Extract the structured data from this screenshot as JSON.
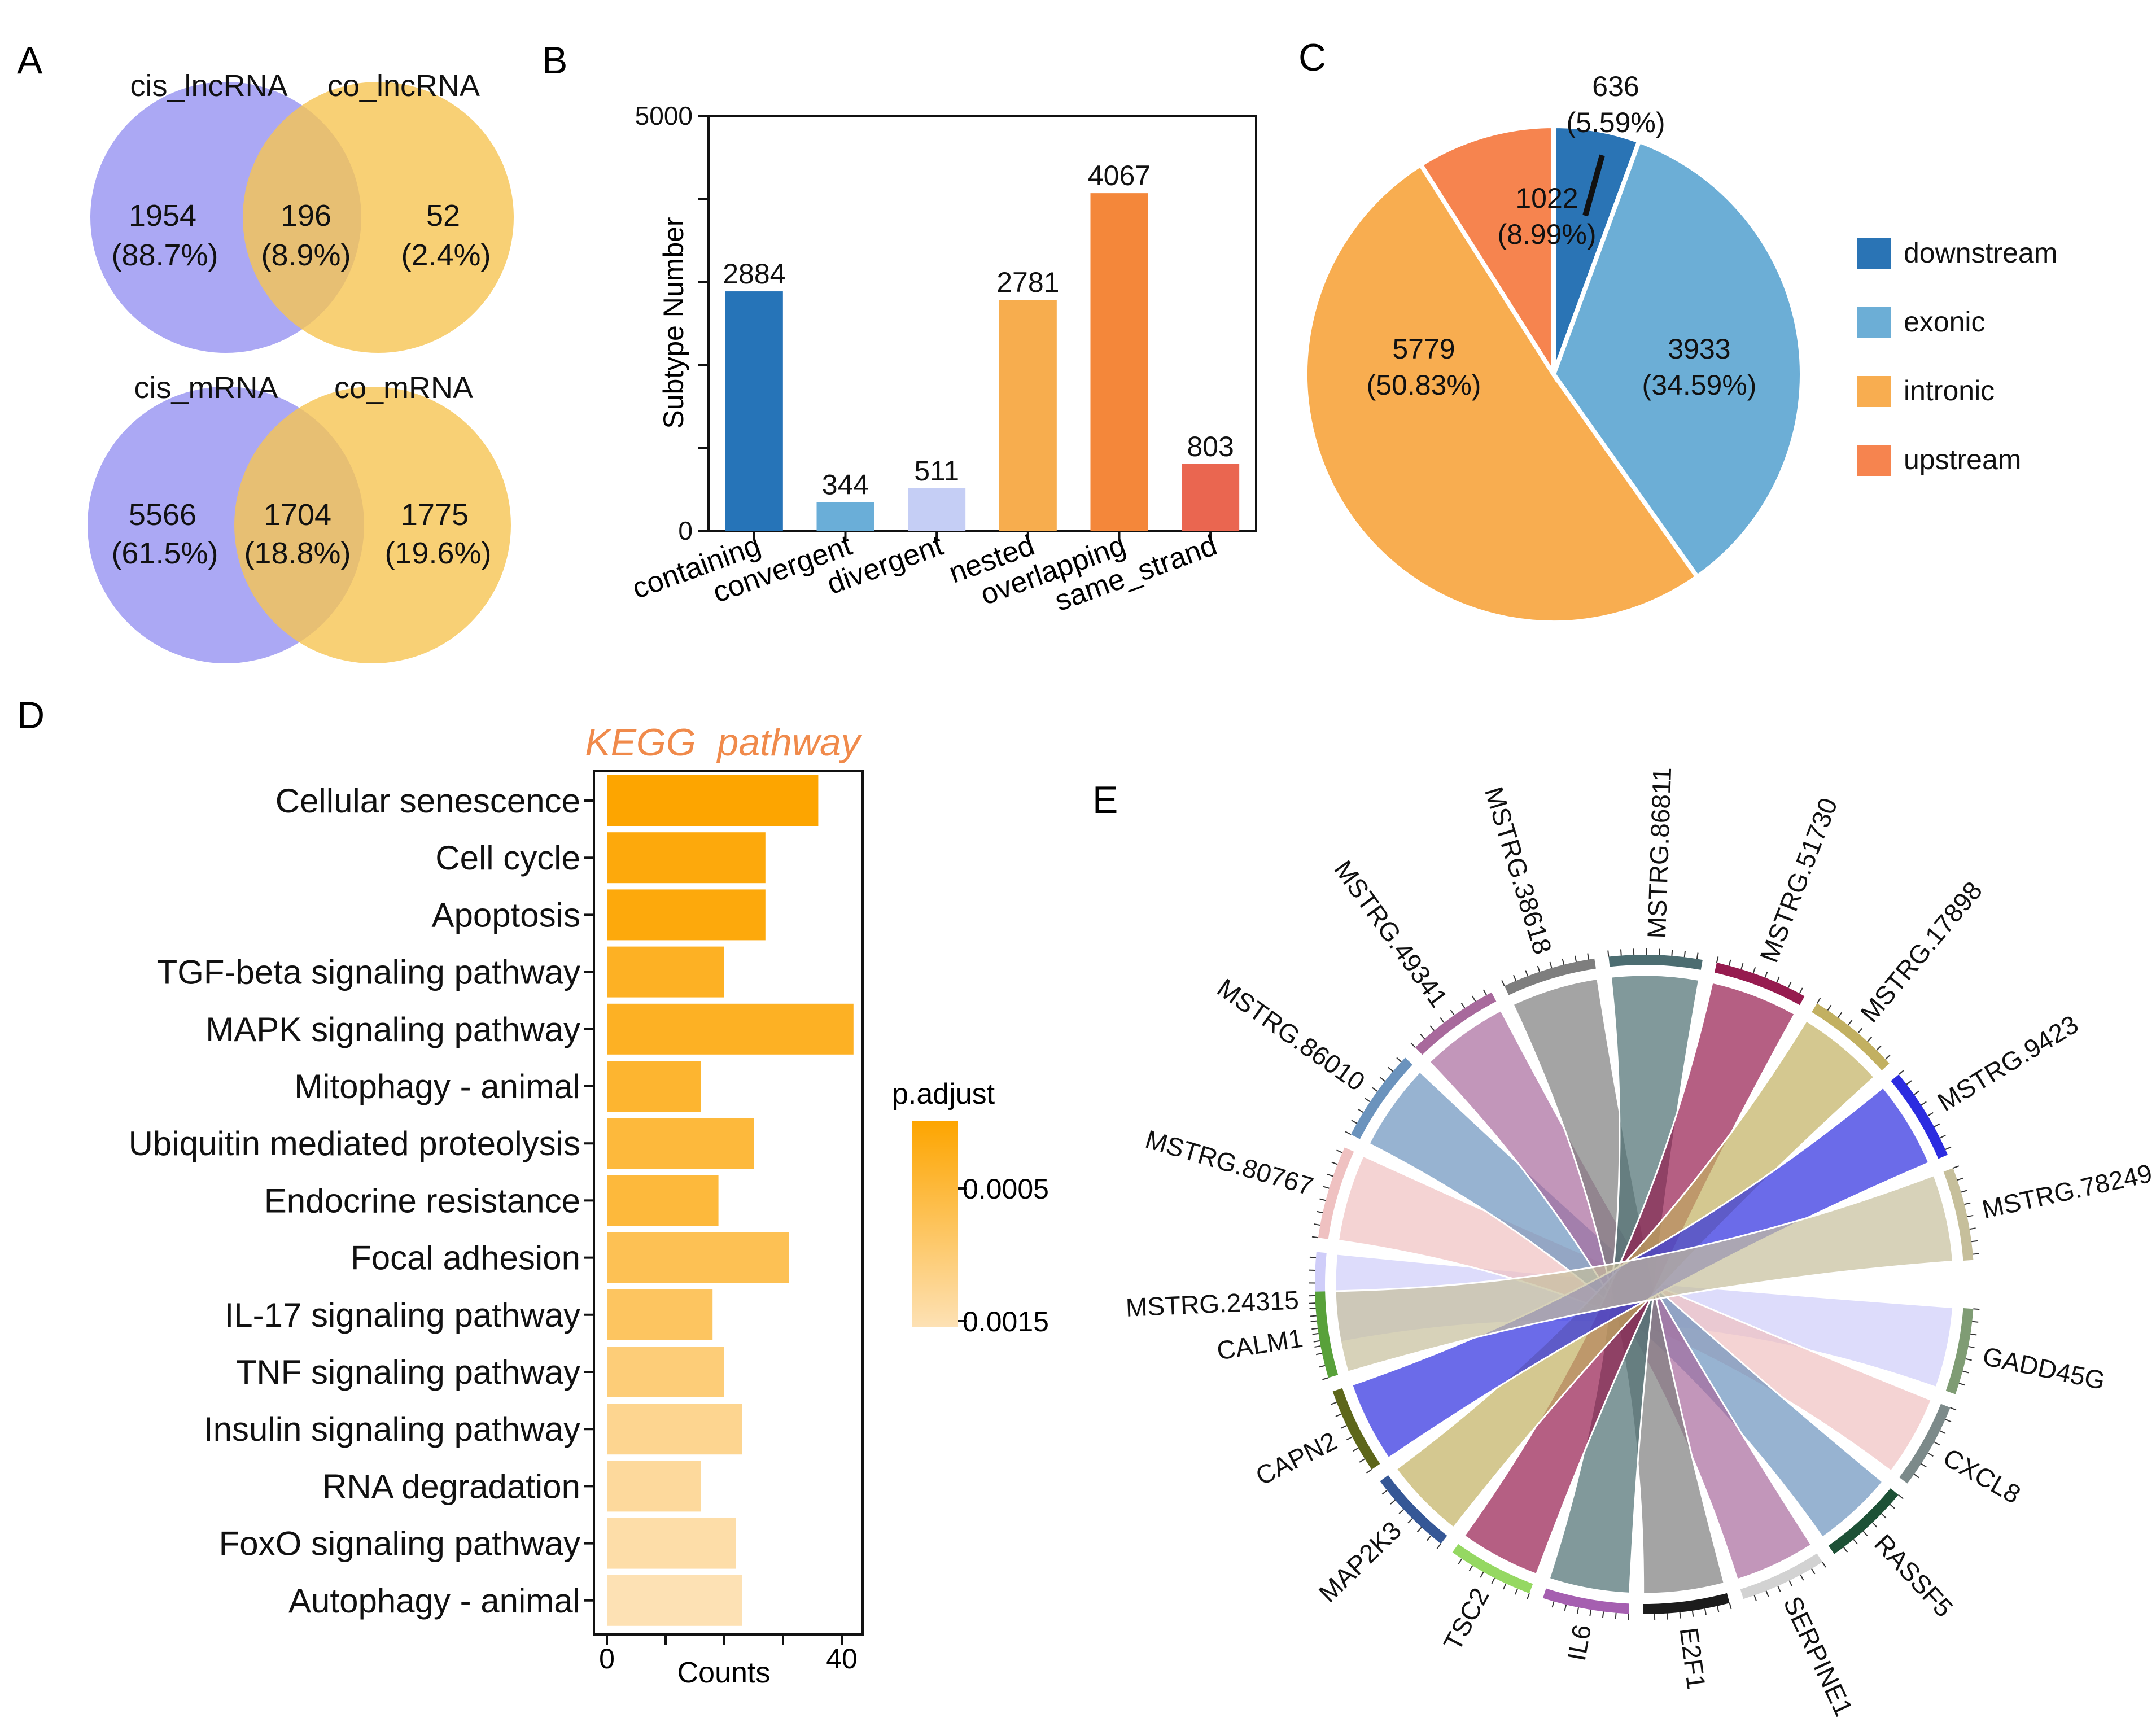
{
  "panels": {
    "A": {
      "letter": "A",
      "venns": [
        {
          "left_label": "cis_lncRNA",
          "right_label": "co_lncRNA",
          "left_value": "1954",
          "left_pct": "(88.7%)",
          "mid_value": "196",
          "mid_pct": "(8.9%)",
          "right_value": "52",
          "right_pct": "(2.4%)"
        },
        {
          "left_label": "cis_mRNA",
          "right_label": "co_mRNA",
          "left_value": "5566",
          "left_pct": "(61.5%)",
          "mid_value": "1704",
          "mid_pct": "(18.8%)",
          "right_value": "1775",
          "right_pct": "(19.6%)"
        }
      ],
      "colors": {
        "left": "#9f9cf2",
        "right": "#f6c452"
      }
    },
    "B": {
      "letter": "B"
    },
    "C": {
      "letter": "C"
    },
    "D": {
      "letter": "D"
    },
    "E": {
      "letter": "E"
    }
  },
  "chart_data": [
    {
      "id": "B",
      "type": "bar",
      "title": "",
      "xlabel": "",
      "ylabel": "Subtype Number",
      "ylim": [
        0,
        5000
      ],
      "yticks": [
        0,
        5000
      ],
      "categories": [
        "containing",
        "convergent",
        "divergent",
        "nested",
        "overlapping",
        "same_strand"
      ],
      "values": [
        2884,
        344,
        511,
        2781,
        4067,
        803
      ],
      "colors": [
        "#2674b8",
        "#6aaed8",
        "#c5cef5",
        "#f7ad4e",
        "#f4873a",
        "#ea6650"
      ]
    },
    {
      "id": "C",
      "type": "pie",
      "slices": [
        {
          "name": "downstream",
          "value": 636,
          "label": "636",
          "pct": "(5.59%)",
          "color": "#2a74b5"
        },
        {
          "name": "exonic",
          "value": 3933,
          "label": "3933",
          "pct": "(34.59%)",
          "color": "#6caed6"
        },
        {
          "name": "intronic",
          "value": 5779,
          "label": "5779",
          "pct": "(50.83%)",
          "color": "#f8ad50"
        },
        {
          "name": "upstream",
          "value": 1022,
          "label": "1022",
          "pct": "(8.99%)",
          "color": "#f6844f"
        }
      ],
      "legend": [
        "downstream",
        "exonic",
        "intronic",
        "upstream"
      ],
      "legend_position": "right"
    },
    {
      "id": "D",
      "type": "bar",
      "orientation": "horizontal",
      "title": "KEGG  pathway",
      "xlabel": "Counts",
      "xlim": [
        0,
        44
      ],
      "xticks": [
        0,
        40
      ],
      "categories": [
        "Cellular senescence",
        "Cell cycle",
        "Apoptosis",
        "TGF-beta signaling pathway",
        "MAPK signaling pathway",
        "Mitophagy - animal",
        "Ubiquitin mediated proteolysis",
        "Endocrine resistance",
        "Focal adhesion",
        "IL-17 signaling pathway",
        "TNF signaling pathway",
        "Insulin signaling pathway",
        "RNA degradation",
        "FoxO signaling pathway",
        "Autophagy - animal"
      ],
      "values": [
        36,
        27,
        27,
        20,
        42,
        16,
        25,
        19,
        31,
        18,
        20,
        23,
        16,
        22,
        23
      ],
      "p_adjust": [
        0.0001,
        0.0002,
        0.0002,
        0.0004,
        0.0004,
        0.0005,
        0.0006,
        0.0006,
        0.0008,
        0.0009,
        0.0011,
        0.0013,
        0.0014,
        0.0015,
        0.0016
      ],
      "colorbar": {
        "title": "p.adjust",
        "ticks": [
          "0.0005",
          "0.0015"
        ],
        "low_color": "#fda500",
        "high_color": "#fde1b4"
      }
    },
    {
      "id": "E",
      "type": "chord",
      "sources": [
        "MSTRG.24315",
        "MSTRG.80767",
        "MSTRG.86010",
        "MSTRG.49341",
        "MSTRG.38618",
        "MSTRG.86811",
        "MSTRG.51730",
        "MSTRG.17898",
        "MSTRG.9423",
        "MSTRG.78249"
      ],
      "targets": [
        "GADD45G",
        "CXCL8",
        "RASSF5",
        "SERPINE1",
        "E2F1",
        "IL6",
        "TSC2",
        "MAP2K3",
        "CAPN2",
        "CALM1"
      ],
      "links": [
        {
          "source": "MSTRG.24315",
          "target": "GADD45G"
        },
        {
          "source": "MSTRG.80767",
          "target": "CXCL8"
        },
        {
          "source": "MSTRG.86010",
          "target": "RASSF5"
        },
        {
          "source": "MSTRG.49341",
          "target": "SERPINE1"
        },
        {
          "source": "MSTRG.38618",
          "target": "E2F1"
        },
        {
          "source": "MSTRG.86811",
          "target": "IL6"
        },
        {
          "source": "MSTRG.51730",
          "target": "TSC2"
        },
        {
          "source": "MSTRG.17898",
          "target": "MAP2K3"
        },
        {
          "source": "MSTRG.9423",
          "target": "CAPN2"
        },
        {
          "source": "MSTRG.78249",
          "target": "CALM1"
        }
      ],
      "source_colors": [
        "#cfcdf9",
        "#efc1c1",
        "#6b93bd",
        "#a8699c",
        "#7e7e7e",
        "#4c6d71",
        "#961b4f",
        "#c2b061",
        "#2c2ce0",
        "#c6bf9b"
      ],
      "target_colors": [
        "#7f9c74",
        "#7c8a8a",
        "#1d5136",
        "#d2d2d2",
        "#1c1c1c",
        "#a55fb0",
        "#95d862",
        "#355796",
        "#5d661a",
        "#58a13a"
      ]
    }
  ]
}
